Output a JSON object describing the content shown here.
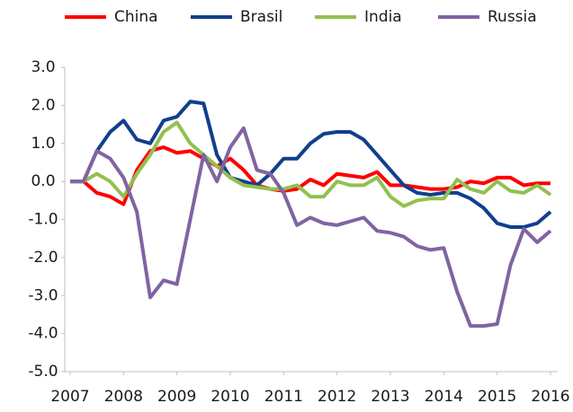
{
  "chart_data": {
    "type": "line",
    "x": [
      2007,
      2007.25,
      2007.5,
      2007.75,
      2008,
      2008.25,
      2008.5,
      2008.75,
      2009,
      2009.25,
      2009.5,
      2009.75,
      2010,
      2010.25,
      2010.5,
      2010.75,
      2011,
      2011.25,
      2011.5,
      2011.75,
      2012,
      2012.25,
      2012.5,
      2012.75,
      2013,
      2013.25,
      2013.5,
      2013.75,
      2014,
      2014.25,
      2014.5,
      2014.75,
      2015,
      2015.25,
      2015.5,
      2015.75,
      2016
    ],
    "series": [
      {
        "name": "China",
        "color": "#ff0000",
        "values": [
          0,
          0,
          -0.3,
          -0.4,
          -0.6,
          0.3,
          0.8,
          0.9,
          0.75,
          0.8,
          0.6,
          0.4,
          0.6,
          0.3,
          -0.1,
          -0.2,
          -0.25,
          -0.2,
          0.05,
          -0.1,
          0.2,
          0.15,
          0.1,
          0.25,
          -0.1,
          -0.1,
          -0.15,
          -0.2,
          -0.2,
          -0.15,
          0,
          -0.05,
          0.1,
          0.1,
          -0.1,
          -0.05,
          -0.05
        ]
      },
      {
        "name": "Brasil",
        "color": "#113f8c",
        "values": [
          0,
          0,
          0.8,
          1.3,
          1.6,
          1.1,
          1.0,
          1.6,
          1.7,
          2.1,
          2.05,
          0.7,
          0.1,
          0.0,
          -0.1,
          0.2,
          0.6,
          0.6,
          1.0,
          1.25,
          1.3,
          1.3,
          1.1,
          0.7,
          0.3,
          -0.1,
          -0.3,
          -0.35,
          -0.3,
          -0.3,
          -0.45,
          -0.7,
          -1.1,
          -1.2,
          -1.2,
          -1.1,
          -0.8
        ]
      },
      {
        "name": "India",
        "color": "#92c050",
        "values": [
          0,
          0,
          0.2,
          0.0,
          -0.4,
          0.2,
          0.7,
          1.3,
          1.55,
          1.0,
          0.7,
          0.4,
          0.1,
          -0.1,
          -0.15,
          -0.2,
          -0.2,
          -0.1,
          -0.4,
          -0.4,
          0.0,
          -0.1,
          -0.1,
          0.1,
          -0.4,
          -0.65,
          -0.5,
          -0.45,
          -0.45,
          0.05,
          -0.2,
          -0.3,
          0.0,
          -0.25,
          -0.3,
          -0.1,
          -0.35
        ]
      },
      {
        "name": "Russia",
        "color": "#8064a2",
        "values": [
          0,
          0,
          0.8,
          0.6,
          0.1,
          -0.8,
          -3.05,
          -2.6,
          -2.7,
          -1.0,
          0.7,
          0.0,
          0.9,
          1.4,
          0.3,
          0.2,
          -0.3,
          -1.15,
          -0.95,
          -1.1,
          -1.15,
          -1.05,
          -0.95,
          -1.3,
          -1.35,
          -1.45,
          -1.7,
          -1.8,
          -1.75,
          -2.9,
          -3.8,
          -3.8,
          -3.75,
          -2.2,
          -1.25,
          -1.6,
          -1.3
        ]
      }
    ],
    "xlim": [
      2007,
      2016
    ],
    "xticks": [
      2007,
      2008,
      2009,
      2010,
      2011,
      2012,
      2013,
      2014,
      2015,
      2016
    ],
    "ylim": [
      -5,
      3
    ],
    "yticks": [
      {
        "value": 3,
        "label": "3.0"
      },
      {
        "value": 2,
        "label": "2.0"
      },
      {
        "value": 1,
        "label": "1.0"
      },
      {
        "value": 0,
        "label": "0.0"
      },
      {
        "value": -1,
        "label": "-1.0"
      },
      {
        "value": -2,
        "label": "-2.0"
      },
      {
        "value": -3,
        "label": "-3.0"
      },
      {
        "value": -4,
        "label": "-4.0"
      },
      {
        "value": -5,
        "label": "-5.0"
      }
    ],
    "grid": false,
    "legend": "top"
  }
}
